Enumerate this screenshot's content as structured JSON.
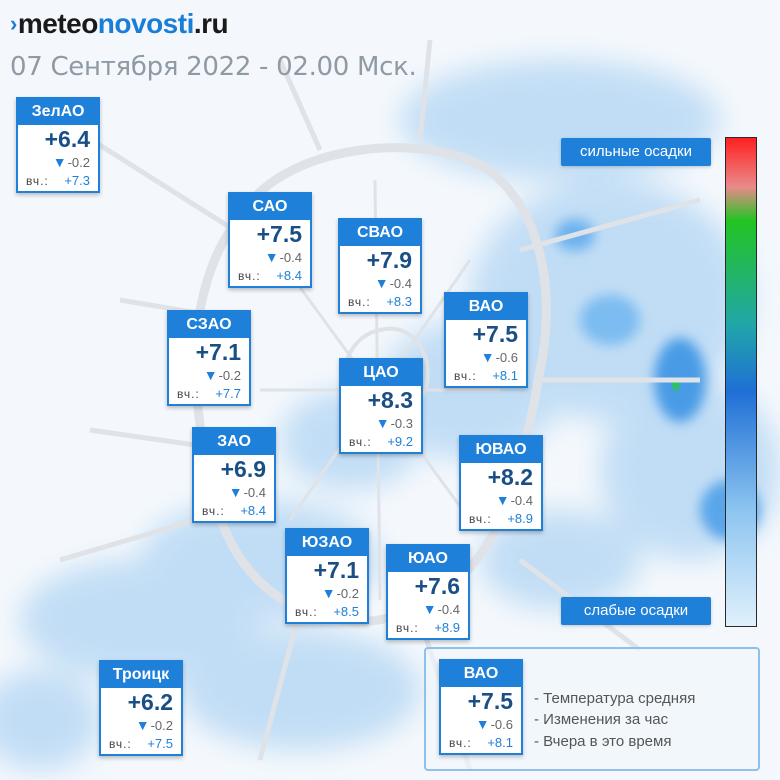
{
  "logo": {
    "mark": "›",
    "part1": "meteo",
    "part2": "novosti",
    "part3": ".ru"
  },
  "date": "07 Сентября 2022 - 02.00 Мск.",
  "scale": {
    "top_label": "сильные осадки",
    "bottom_label": "слабые осадки"
  },
  "yesterday_label": "вч.:",
  "districts": [
    {
      "name": "ЗелАО",
      "temp": "+6.4",
      "change": "-0.2",
      "yesterday": "+7.3"
    },
    {
      "name": "САО",
      "temp": "+7.5",
      "change": "-0.4",
      "yesterday": "+8.4"
    },
    {
      "name": "СВАО",
      "temp": "+7.9",
      "change": "-0.4",
      "yesterday": "+8.3"
    },
    {
      "name": "ВАО",
      "temp": "+7.5",
      "change": "-0.6",
      "yesterday": "+8.1"
    },
    {
      "name": "СЗАО",
      "temp": "+7.1",
      "change": "-0.2",
      "yesterday": "+7.7"
    },
    {
      "name": "ЦАО",
      "temp": "+8.3",
      "change": "-0.3",
      "yesterday": "+9.2"
    },
    {
      "name": "ЗАО",
      "temp": "+6.9",
      "change": "-0.4",
      "yesterday": "+8.4"
    },
    {
      "name": "ЮВАО",
      "temp": "+8.2",
      "change": "-0.4",
      "yesterday": "+8.9"
    },
    {
      "name": "ЮЗАО",
      "temp": "+7.1",
      "change": "-0.2",
      "yesterday": "+8.5"
    },
    {
      "name": "ЮАО",
      "temp": "+7.6",
      "change": "-0.4",
      "yesterday": "+8.9"
    },
    {
      "name": "Троицк",
      "temp": "+6.2",
      "change": "-0.2",
      "yesterday": "+7.5"
    }
  ],
  "legend": {
    "sample": {
      "name": "ВАО",
      "temp": "+7.5",
      "change": "-0.6",
      "yesterday": "+8.1"
    },
    "lines": [
      "- Температура средняя",
      "- Изменения за час",
      "- Вчера в это время"
    ]
  },
  "colors": {
    "accent": "#1e80d8",
    "temp_text": "#1a4f86",
    "date_text": "#8f9aa5"
  }
}
